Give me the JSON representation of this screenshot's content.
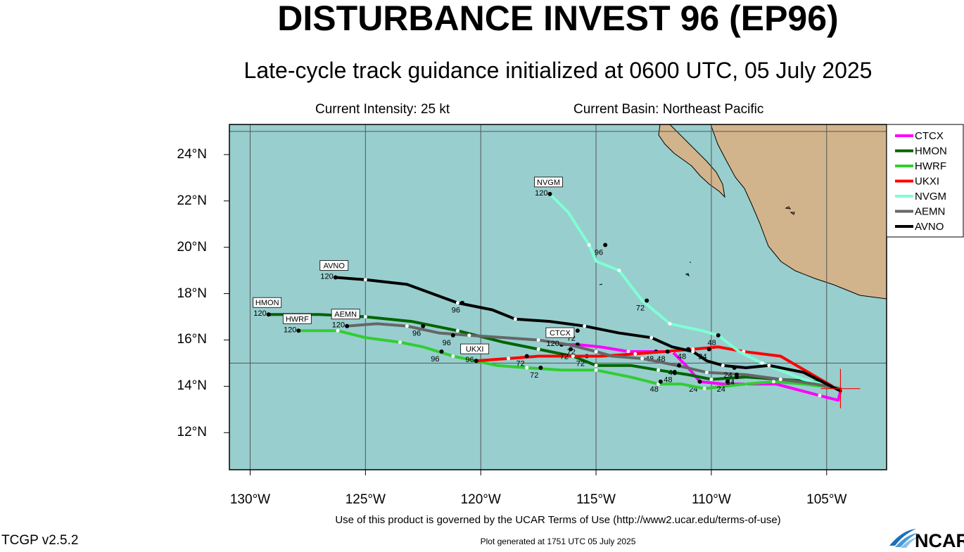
{
  "header": {
    "title": "DISTURBANCE INVEST 96 (EP96)",
    "subtitle": "Late-cycle track guidance initialized at 0600 UTC, 05 July 2025",
    "current_intensity": "Current Intensity: 25 kt",
    "current_basin": "Current Basin: Northeast Pacific"
  },
  "footer": {
    "terms": "Use of this product is governed by the UCAR Terms of Use (http://www2.ucar.edu/terms-of-use)",
    "version": "TCGP v2.5.2",
    "generated": "Plot generated at 1751 UTC   05 July 2025",
    "logo_text": "NCAR"
  },
  "map": {
    "lon_range": [
      -130.9,
      -102.4
    ],
    "lat_range": [
      10.4,
      25.3
    ],
    "lat_ticks": [
      {
        "value": 12,
        "label": "12°N"
      },
      {
        "value": 14,
        "label": "14°N"
      },
      {
        "value": 16,
        "label": "16°N"
      },
      {
        "value": 18,
        "label": "18°N"
      },
      {
        "value": 20,
        "label": "20°N"
      },
      {
        "value": 22,
        "label": "22°N"
      },
      {
        "value": 24,
        "label": "24°N"
      }
    ],
    "lon_ticks": [
      {
        "value": -130,
        "label": "130°W"
      },
      {
        "value": -125,
        "label": "125°W"
      },
      {
        "value": -120,
        "label": "120°W"
      },
      {
        "value": -115,
        "label": "115°W"
      },
      {
        "value": -110,
        "label": "110°W"
      },
      {
        "value": -105,
        "label": "105°W"
      }
    ],
    "ocean_color": "#98CECE",
    "land_color": "#D2B48C",
    "grid_color": "#555555",
    "current_position": {
      "lon": -104.4,
      "lat": 13.9
    }
  },
  "chart_data": {
    "type": "line",
    "legend_position": "right",
    "series": [
      {
        "name": "CTCX",
        "color": "#FF00FF",
        "end_label": "CTCX",
        "end_hour": "120",
        "points": [
          [
            -104.4,
            13.8
          ],
          [
            -104.5,
            13.4
          ],
          [
            -105.3,
            13.6
          ],
          [
            -107.2,
            14.1
          ],
          [
            -108.5,
            14.1
          ],
          [
            -109.5,
            14.1
          ],
          [
            -110.5,
            14.2
          ],
          [
            -111,
            14.8
          ],
          [
            -111.7,
            15.5
          ],
          [
            -112.4,
            15.5
          ],
          [
            -113.6,
            15.5
          ],
          [
            -114.8,
            15.7
          ],
          [
            -115.8,
            15.8
          ],
          [
            -116.5,
            15.8
          ]
        ],
        "hour_labels": [
          {
            "h": "24",
            "lon": -110.5,
            "lat": 14.2
          },
          {
            "h": "48",
            "lon": -112.4,
            "lat": 15.5
          },
          {
            "h": "72",
            "lon": -115.8,
            "lat": 15.8
          }
        ]
      },
      {
        "name": "HMON",
        "color": "#006400",
        "end_label": "HMON",
        "end_hour": "120",
        "points": [
          [
            -104.4,
            13.9
          ],
          [
            -105.5,
            14.2
          ],
          [
            -107,
            14.3
          ],
          [
            -108.5,
            14.4
          ],
          [
            -110,
            14.3
          ],
          [
            -111,
            14.5
          ],
          [
            -112.3,
            14.7
          ],
          [
            -113.5,
            14.9
          ],
          [
            -115,
            14.9
          ],
          [
            -116,
            15.3
          ],
          [
            -117.5,
            15.6
          ],
          [
            -119,
            15.9
          ],
          [
            -121,
            16.4
          ],
          [
            -123,
            16.8
          ],
          [
            -125,
            17
          ],
          [
            -127,
            17.1
          ],
          [
            -129.2,
            17.1
          ]
        ],
        "hour_labels": [
          {
            "h": "24",
            "lon": -108.9,
            "lat": 14.4
          },
          {
            "h": "48",
            "lon": -111.6,
            "lat": 14.6
          },
          {
            "h": "72",
            "lon": -115.4,
            "lat": 15.3
          },
          {
            "h": "96",
            "lon": -122.5,
            "lat": 16.6
          }
        ]
      },
      {
        "name": "HWRF",
        "color": "#32CD32",
        "end_label": "HWRF",
        "end_hour": "120",
        "points": [
          [
            -104.4,
            13.9
          ],
          [
            -106,
            14.1
          ],
          [
            -107.3,
            14.2
          ],
          [
            -108.5,
            14.1
          ],
          [
            -110.3,
            13.9
          ],
          [
            -111.3,
            14.1
          ],
          [
            -112.3,
            14.1
          ],
          [
            -113.5,
            14.4
          ],
          [
            -115,
            14.7
          ],
          [
            -116.5,
            14.7
          ],
          [
            -118,
            14.8
          ],
          [
            -119.3,
            14.9
          ],
          [
            -121.2,
            15.3
          ],
          [
            -122.5,
            15.7
          ],
          [
            -123.5,
            15.9
          ],
          [
            -125,
            16.1
          ],
          [
            -126.2,
            16.4
          ],
          [
            -127.9,
            16.4
          ]
        ],
        "hour_labels": [
          {
            "h": "24",
            "lon": -109.3,
            "lat": 14.2
          },
          {
            "h": "48",
            "lon": -112.2,
            "lat": 14.2
          },
          {
            "h": "72",
            "lon": -117.4,
            "lat": 14.8
          },
          {
            "h": "96",
            "lon": -121.7,
            "lat": 15.5
          }
        ]
      },
      {
        "name": "UKXI",
        "color": "#FF0000",
        "end_label": "UKXI",
        "end_hour": "96",
        "points": [
          [
            -104.4,
            13.8
          ],
          [
            -107,
            15.3
          ],
          [
            -108.6,
            15.5
          ],
          [
            -109.7,
            15.7
          ],
          [
            -110.8,
            15.6
          ],
          [
            -112,
            15.5
          ],
          [
            -113.3,
            15.4
          ],
          [
            -114.8,
            15.3
          ],
          [
            -116,
            15.3
          ],
          [
            -117.5,
            15.3
          ],
          [
            -118.8,
            15.2
          ],
          [
            -120.2,
            15.1
          ]
        ],
        "hour_labels": [
          {
            "h": "24",
            "lon": -110.1,
            "lat": 15.6
          },
          {
            "h": "48",
            "lon": -111.9,
            "lat": 15.5
          },
          {
            "h": "72",
            "lon": -118,
            "lat": 15.3
          }
        ]
      },
      {
        "name": "NVGM",
        "color": "#7FFFD4",
        "end_label": "NVGM",
        "end_hour": "120",
        "points": [
          [
            -104.4,
            13.9
          ],
          [
            -106,
            14.3
          ],
          [
            -107.8,
            15
          ],
          [
            -108.8,
            15.5
          ],
          [
            -109.7,
            16.2
          ],
          [
            -110.4,
            16.4
          ],
          [
            -111.8,
            16.7
          ],
          [
            -113,
            17.7
          ],
          [
            -114,
            19
          ],
          [
            -115,
            19.4
          ],
          [
            -115.3,
            20.1
          ],
          [
            -116.2,
            21.5
          ],
          [
            -117,
            22.3
          ]
        ],
        "hour_labels": [
          {
            "h": "48",
            "lon": -109.7,
            "lat": 16.2
          },
          {
            "h": "72",
            "lon": -112.8,
            "lat": 17.7
          },
          {
            "h": "96",
            "lon": -114.6,
            "lat": 20.1
          }
        ]
      },
      {
        "name": "AEMN",
        "color": "#666666",
        "end_label": "AEMN",
        "end_hour": "120",
        "points": [
          [
            -104.4,
            13.9
          ],
          [
            -105.5,
            14.1
          ],
          [
            -107,
            14.3
          ],
          [
            -108.5,
            14.5
          ],
          [
            -110.2,
            14.6
          ],
          [
            -111.5,
            14.9
          ],
          [
            -113,
            15.2
          ],
          [
            -114.3,
            15.3
          ],
          [
            -115,
            15.5
          ],
          [
            -116.2,
            15.8
          ],
          [
            -117.5,
            16
          ],
          [
            -119,
            16.1
          ],
          [
            -120.5,
            16.2
          ],
          [
            -121.8,
            16.3
          ],
          [
            -123.2,
            16.6
          ],
          [
            -124.5,
            16.7
          ],
          [
            -125.8,
            16.6
          ]
        ],
        "hour_labels": [
          {
            "h": "24",
            "lon": -108.9,
            "lat": 14.5
          },
          {
            "h": "48",
            "lon": -111.4,
            "lat": 14.9
          },
          {
            "h": "72",
            "lon": -116.1,
            "lat": 15.6
          },
          {
            "h": "96",
            "lon": -121.2,
            "lat": 16.2
          }
        ]
      },
      {
        "name": "AVNO",
        "color": "#000000",
        "end_label": "AVNO",
        "end_hour": "120",
        "points": [
          [
            -104.4,
            13.8
          ],
          [
            -106,
            14.6
          ],
          [
            -107.5,
            14.9
          ],
          [
            -108.5,
            14.8
          ],
          [
            -109.5,
            14.9
          ],
          [
            -110.2,
            15.1
          ],
          [
            -110.8,
            15.5
          ],
          [
            -111.7,
            15.7
          ],
          [
            -112.6,
            16.1
          ],
          [
            -114,
            16.3
          ],
          [
            -115.5,
            16.6
          ],
          [
            -117,
            16.8
          ],
          [
            -118.5,
            16.9
          ],
          [
            -119.5,
            17.3
          ],
          [
            -121,
            17.6
          ],
          [
            -123.2,
            18.4
          ],
          [
            -125,
            18.6
          ],
          [
            -126.3,
            18.7
          ]
        ],
        "hour_labels": [
          {
            "h": "24",
            "lon": -109,
            "lat": 14.8
          },
          {
            "h": "48",
            "lon": -111,
            "lat": 15.6
          },
          {
            "h": "72",
            "lon": -115.8,
            "lat": 16.4
          },
          {
            "h": "96",
            "lon": -120.8,
            "lat": 17.6
          }
        ]
      }
    ]
  }
}
